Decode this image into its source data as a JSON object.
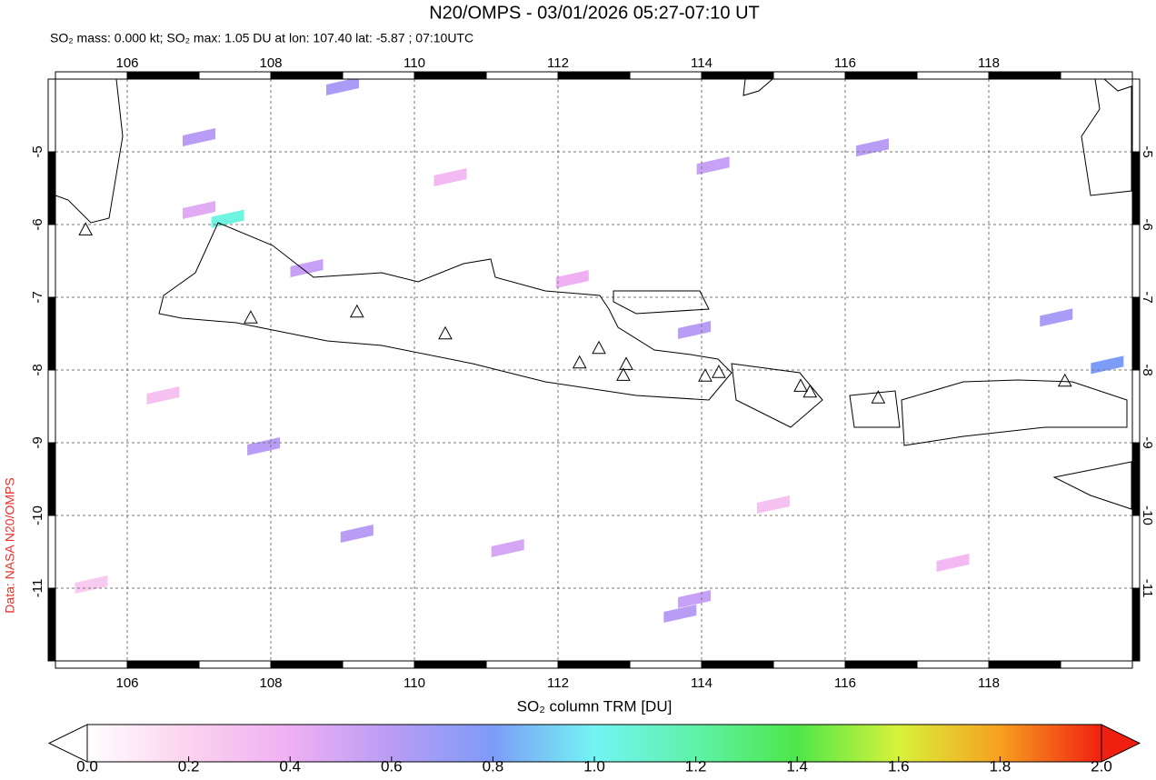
{
  "chart_data": {
    "type": "map",
    "title": "N20/OMPS - 03/01/2026 05:27-07:10 UT",
    "subtitle": "SO₂ mass: 0.000 kt; SO₂ max: 1.05 DU at lon: 107.40 lat: -5.87 ; 07:10UTC",
    "credit": "Data: NASA N20/OMPS",
    "colorbar_label": "SO₂ column TRM [DU]",
    "xlim": [
      105,
      120
    ],
    "ylim": [
      -12,
      -4
    ],
    "xticks": [
      106,
      108,
      110,
      112,
      114,
      116,
      118
    ],
    "yticks": [
      -5,
      -6,
      -7,
      -8,
      -9,
      -10,
      -11
    ],
    "grid": true,
    "colorscale": {
      "range": [
        0,
        2
      ],
      "ticks": [
        {
          "value": 0,
          "label": "0.0"
        },
        {
          "value": 0.2,
          "label": "0.2"
        },
        {
          "value": 0.4,
          "label": "0.4"
        },
        {
          "value": 0.6,
          "label": "0.6"
        },
        {
          "value": 0.8,
          "label": "0.8"
        },
        {
          "value": 1,
          "label": "1.0"
        },
        {
          "value": 1.2,
          "label": "1.2"
        },
        {
          "value": 1.4,
          "label": "1.4"
        },
        {
          "value": 1.6,
          "label": "1.6"
        },
        {
          "value": 1.8,
          "label": "1.8"
        },
        {
          "value": 2,
          "label": "2.0"
        }
      ],
      "stops": [
        0,
        0.2,
        0.4,
        0.6,
        0.8,
        1,
        1.2,
        1.4,
        1.6,
        1.8,
        2
      ],
      "colors": [
        "#ffffff",
        "#fbd2ef",
        "#efb0f3",
        "#b89cf5",
        "#7d9cf7",
        "#73f4f4",
        "#5ef2a8",
        "#4ee64a",
        "#d8f23a",
        "#f7a020",
        "#f02010"
      ]
    },
    "so2_pixels": {
      "lon": [
        107.4,
        107.0,
        107.0,
        109.0,
        108.5,
        107.9,
        109.2,
        111.3,
        113.7,
        113.9,
        114.16,
        113.9,
        118.94,
        119.65,
        116.38,
        106.5,
        110.5,
        112.2,
        115.0,
        117.5,
        105.5
      ],
      "lat": [
        -5.87,
        -5.75,
        -4.75,
        -4.05,
        -6.55,
        -9.0,
        -10.2,
        -10.4,
        -11.3,
        -11.1,
        -5.14,
        -7.4,
        -7.23,
        -7.88,
        -4.89,
        -8.3,
        -5.3,
        -6.7,
        -9.8,
        -10.6,
        -10.9
      ],
      "values": [
        1.05,
        0.45,
        0.6,
        0.65,
        0.55,
        0.6,
        0.6,
        0.5,
        0.6,
        0.55,
        0.55,
        0.6,
        0.65,
        0.8,
        0.6,
        0.3,
        0.35,
        0.4,
        0.3,
        0.35,
        0.25
      ]
    },
    "volcanoes": {
      "lon": [
        105.42,
        107.72,
        109.2,
        110.43,
        112.3,
        112.57,
        112.95,
        112.91,
        114.05,
        114.24,
        115.38,
        115.51,
        116.46,
        119.06
      ],
      "lat": [
        -6.08,
        -7.29,
        -7.21,
        -7.51,
        -7.91,
        -7.71,
        -7.93,
        -8.08,
        -8.09,
        -8.04,
        -8.23,
        -8.31,
        -8.39,
        -8.16
      ]
    }
  }
}
